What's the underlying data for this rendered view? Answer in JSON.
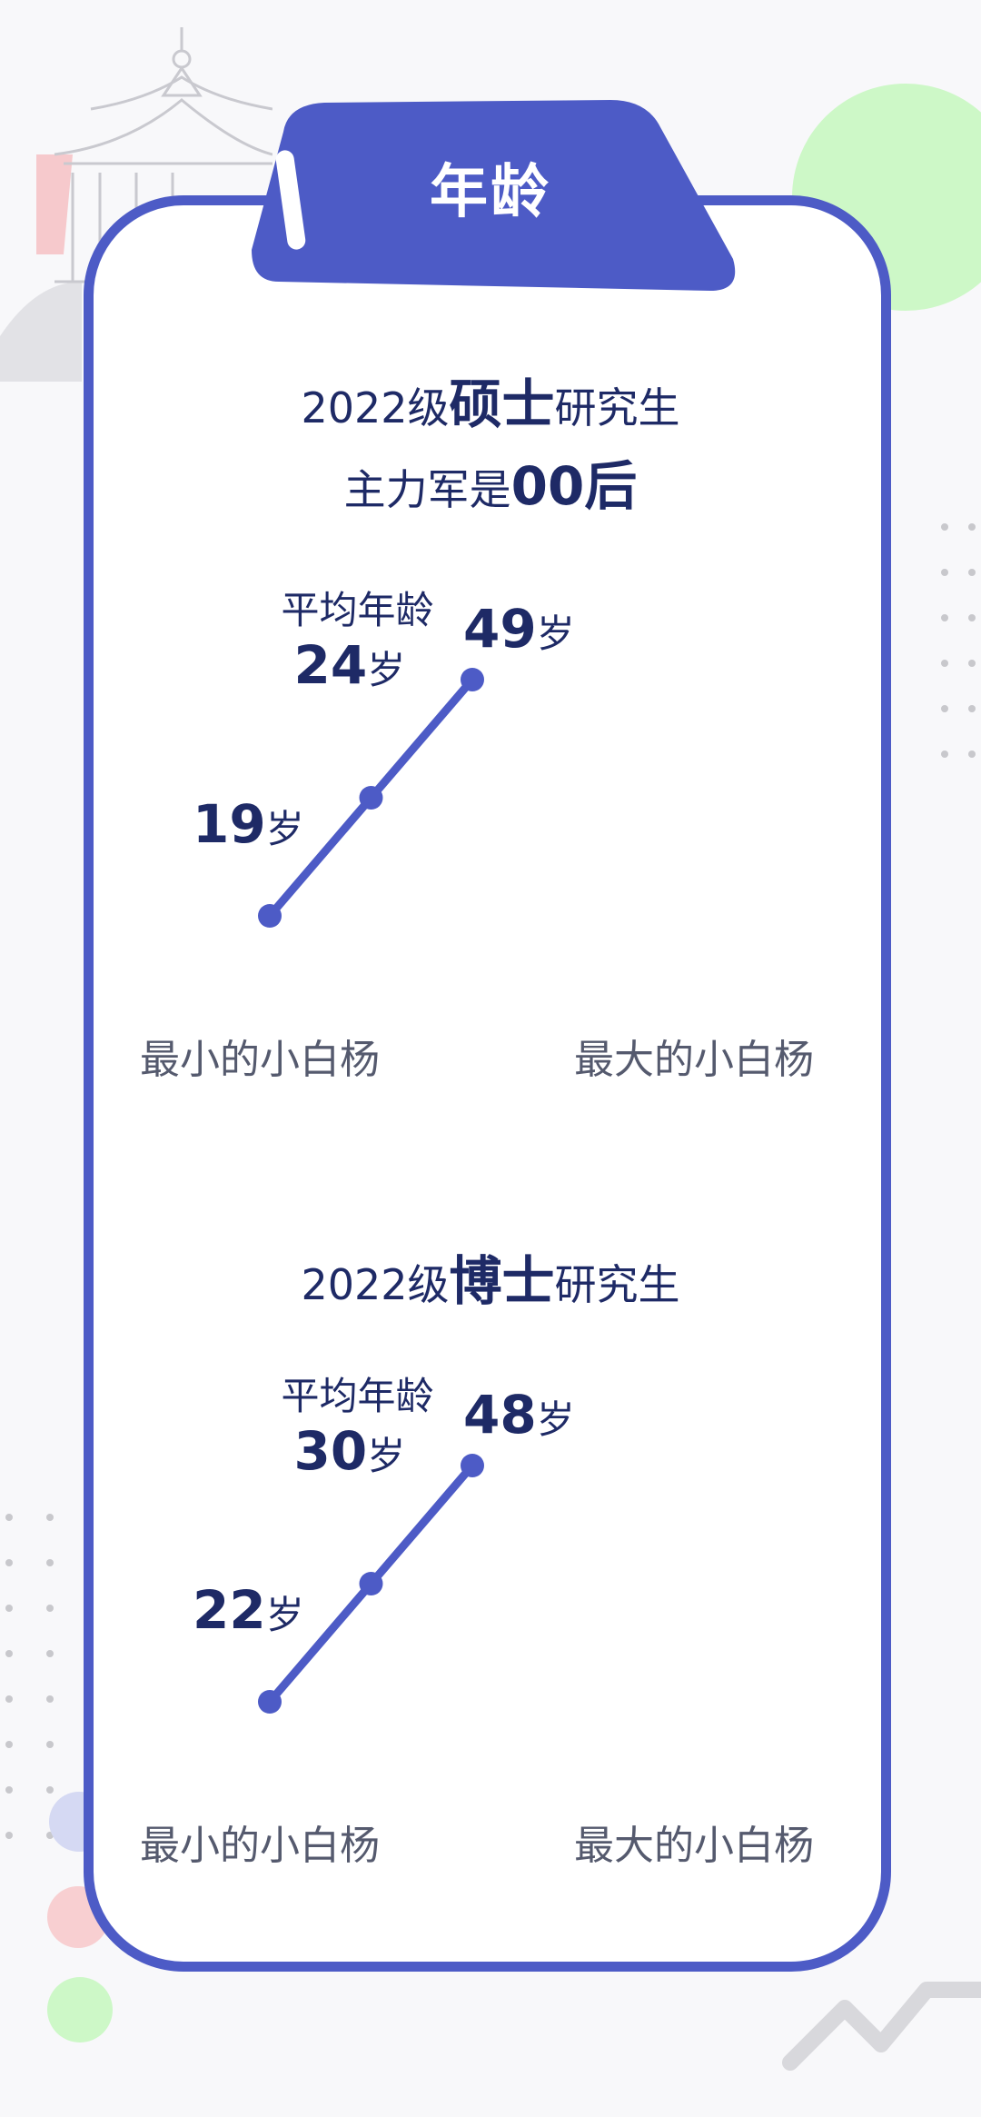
{
  "colors": {
    "accent": "#4d5bc6",
    "text": "#1e2a66",
    "muted": "#555a6e",
    "green": "#cdf8c7",
    "pink": "#f8cfd1",
    "lavender": "#d5d9f3"
  },
  "tab_title": "年龄",
  "master": {
    "heading_prefix": "2022级",
    "heading_bold": "硕士",
    "heading_suffix": "研究生",
    "subheading_prefix": "主力军是",
    "subheading_bold": "00后"
  },
  "phd": {
    "heading_prefix": "2022级",
    "heading_bold": "博士",
    "heading_suffix": "研究生"
  },
  "chart_data": [
    {
      "type": "line",
      "title": "2022级硕士研究生",
      "categories": [
        "最小的小白杨",
        "平均年龄",
        "最大的小白杨"
      ],
      "values": [
        19,
        24,
        49
      ],
      "unit": "岁",
      "avg_label": "平均年龄",
      "min_label": "最小的小白杨",
      "max_label": "最大的小白杨"
    },
    {
      "type": "line",
      "title": "2022级博士研究生",
      "categories": [
        "最小的小白杨",
        "平均年龄",
        "最大的小白杨"
      ],
      "values": [
        22,
        30,
        48
      ],
      "unit": "岁",
      "avg_label": "平均年龄",
      "min_label": "最小的小白杨",
      "max_label": "最大的小白杨"
    }
  ]
}
